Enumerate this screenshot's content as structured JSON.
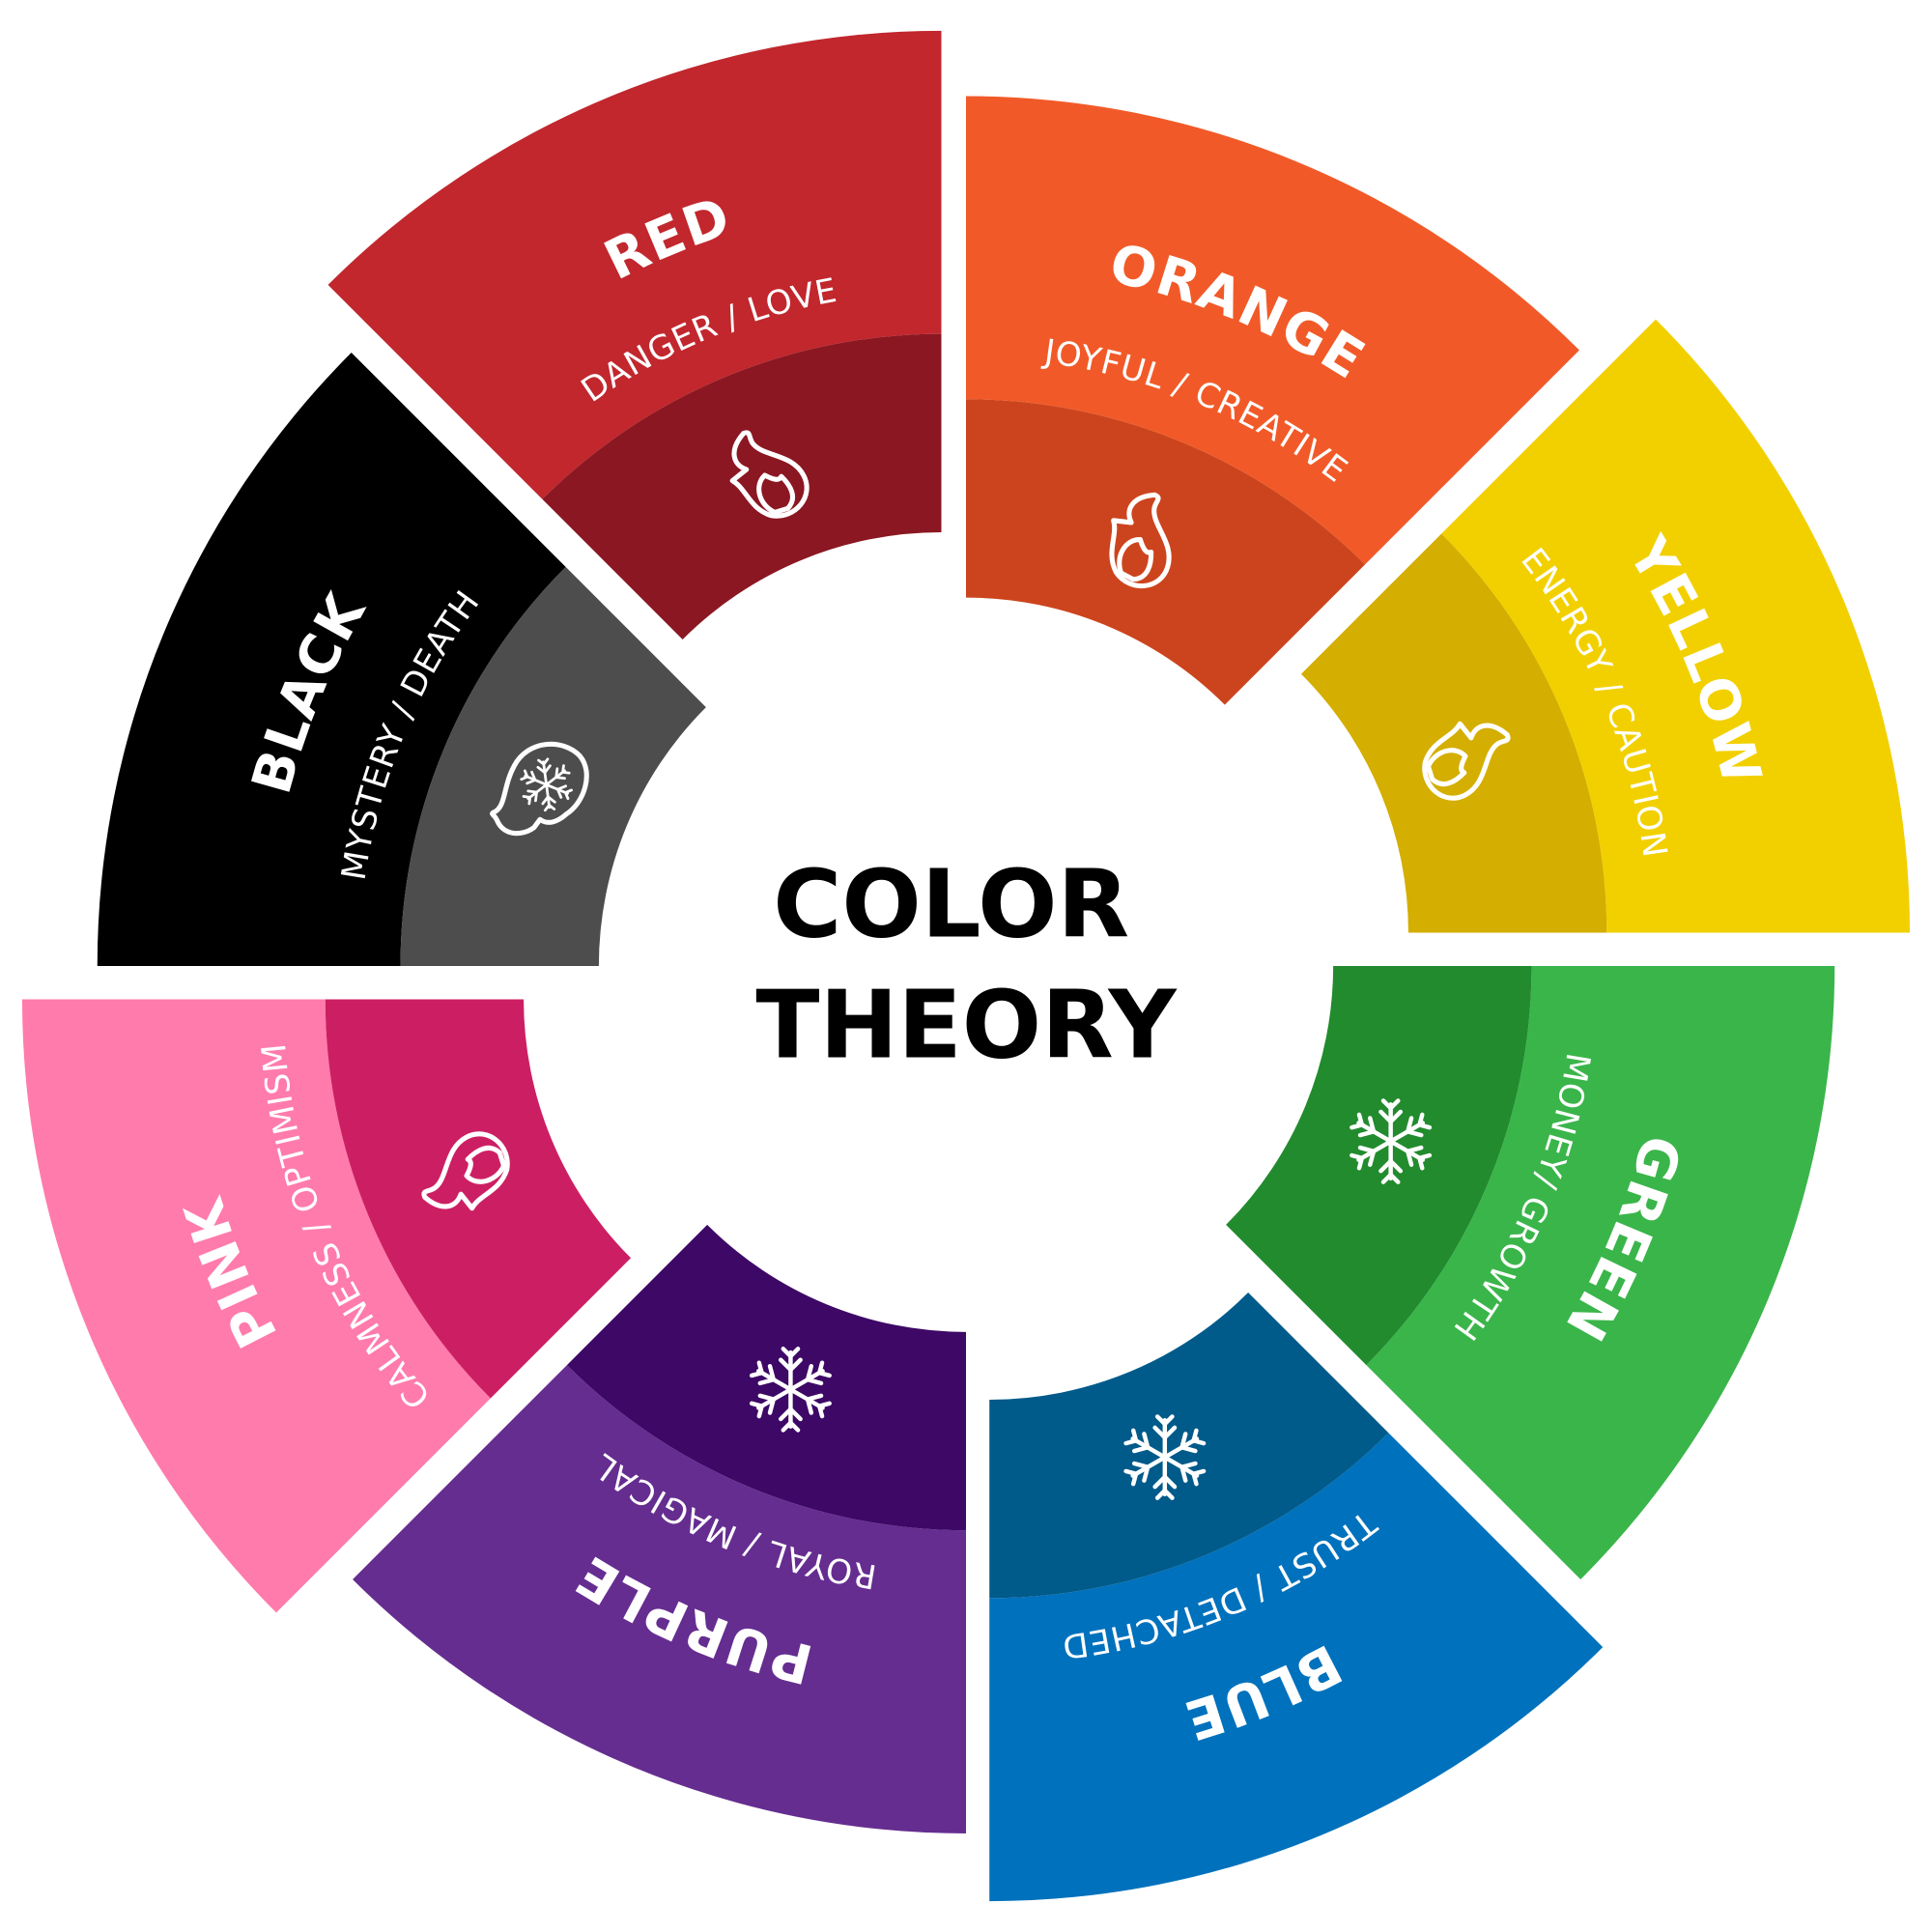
{
  "title": {
    "line1": "COLOR",
    "line2": "THEORY"
  },
  "segments": [
    {
      "name": "RED",
      "subtitle": "DANGER / LOVE",
      "icon": "flame-icon",
      "outer_color": "#C1272D",
      "inner_color": "#8B1722"
    },
    {
      "name": "ORANGE",
      "subtitle": "JOYFUL / CREATIVE",
      "icon": "flame-icon",
      "outer_color": "#F15A28",
      "inner_color": "#CC441D"
    },
    {
      "name": "YELLOW",
      "subtitle": "ENERGY / CAUTION",
      "icon": "flame-icon",
      "outer_color": "#F2D000",
      "inner_color": "#D4AE00"
    },
    {
      "name": "GREEN",
      "subtitle": "MONEY/ GROWTH",
      "icon": "snowflake-icon",
      "outer_color": "#3AB54A",
      "inner_color": "#228B2E"
    },
    {
      "name": "BLUE",
      "subtitle": "TRUST / DETACHED",
      "icon": "snowflake-icon",
      "outer_color": "#0071BC",
      "inner_color": "#005A8A"
    },
    {
      "name": "PURPLE",
      "subtitle": "ROYAL  /  MAGICAL",
      "icon": "snowflake-icon",
      "outer_color": "#652D90",
      "inner_color": "#3D0866"
    },
    {
      "name": "PINK",
      "subtitle": "CALMNESS / OPTIMISM",
      "icon": "flame-icon",
      "outer_color": "#FF7BAC",
      "inner_color": "#CC1F63"
    },
    {
      "name": "BLACK",
      "subtitle": "MYSTERY / DEATH",
      "icon": "flame-snowflake-icon",
      "outer_color": "#000000",
      "inner_color": "#4D4D4D"
    }
  ]
}
